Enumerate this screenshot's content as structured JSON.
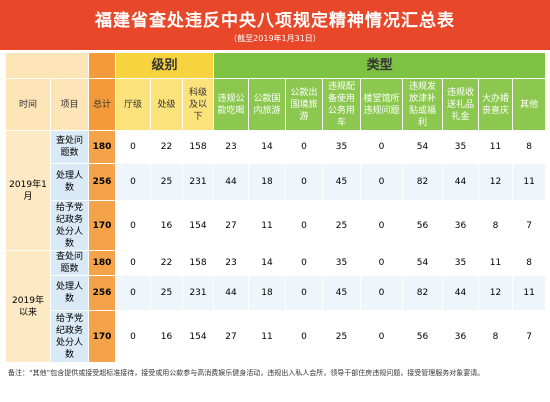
{
  "header": {
    "title": "福建省查处违反中央八项规定精神情况汇总表",
    "subtitle": "（截至2019年1月31日）"
  },
  "table": {
    "group_headers": [
      "级别",
      "类型"
    ],
    "columns": [
      "时间",
      "项目",
      "总计",
      "厅级",
      "处级",
      "科级及以下",
      "违规公款吃喝",
      "公款国内旅游",
      "公款出国境旅游",
      "违规配备使用公务用车",
      "楼堂馆所违规问题",
      "违规发放津补贴或福利",
      "违规收送礼品礼金",
      "大办婚丧喜庆",
      "其他"
    ],
    "groups": [
      {
        "period": "2019年1月",
        "rows": [
          {
            "item": "查处问题数",
            "values": [
              180,
              0,
              22,
              158,
              23,
              14,
              0,
              35,
              0,
              54,
              35,
              11,
              8
            ]
          },
          {
            "item": "处理人数",
            "values": [
              256,
              0,
              25,
              231,
              44,
              18,
              0,
              45,
              0,
              82,
              44,
              12,
              11
            ]
          },
          {
            "item": "给予党纪政务处分人数",
            "values": [
              170,
              0,
              16,
              154,
              27,
              11,
              0,
              25,
              0,
              56,
              36,
              8,
              7
            ]
          }
        ]
      },
      {
        "period": "2019年以来",
        "rows": [
          {
            "item": "查处问题数",
            "values": [
              180,
              0,
              22,
              158,
              23,
              14,
              0,
              35,
              0,
              54,
              35,
              11,
              8
            ]
          },
          {
            "item": "处理人数",
            "values": [
              256,
              0,
              25,
              231,
              44,
              18,
              0,
              45,
              0,
              82,
              44,
              12,
              11
            ]
          },
          {
            "item": "给予党纪政务处分人数",
            "values": [
              170,
              0,
              16,
              154,
              27,
              11,
              0,
              25,
              0,
              56,
              36,
              8,
              7
            ]
          }
        ]
      }
    ]
  },
  "note": "备注：“其他”包含提供或接受超标准接待，接受或用公款参与高消费娱乐健身活动，违规出入私人会所，领导干部住房违规问题，接受管理服务对象宴请。"
}
